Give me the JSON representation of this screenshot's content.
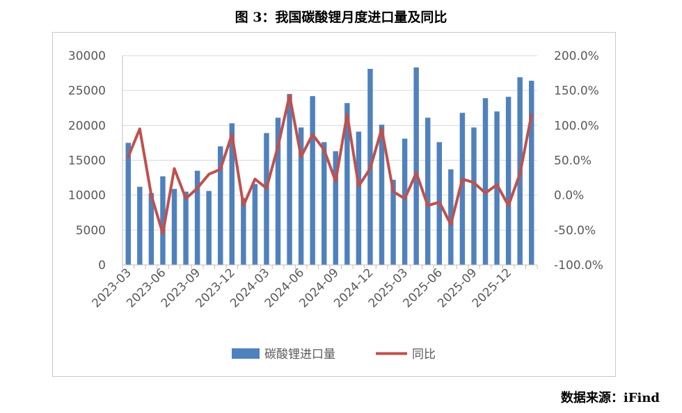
{
  "title": "图 3：我国碳酸锂月度进口量及同比",
  "source": "数据来源：iFind",
  "colors": {
    "bar": "#4f81bd",
    "line": "#c0504d",
    "grid": "#d9d9d9",
    "axis": "#595959"
  },
  "chart_data": {
    "type": "bar+line",
    "title": "",
    "xlabel": "",
    "ylabel": "",
    "categories": [
      "2023-03",
      "2023-04",
      "2023-05",
      "2023-06",
      "2023-07",
      "2023-08",
      "2023-09",
      "2023-10",
      "2023-11",
      "2023-12",
      "2024-01",
      "2024-02",
      "2024-03",
      "2024-04",
      "2024-05",
      "2024-06",
      "2024-07",
      "2024-08",
      "2024-09",
      "2024-10",
      "2024-11",
      "2024-12",
      "2025-01",
      "2025-02",
      "2025-03",
      "2025-04",
      "2025-05",
      "2025-06",
      "2025-07",
      "2025-08",
      "2025-09",
      "2025-10",
      "2025-11",
      "2025-12",
      "2026-01",
      "2026-02"
    ],
    "x_tick_labels": [
      "2023-03",
      "2023-06",
      "2023-09",
      "2023-12",
      "2024-03",
      "2024-06",
      "2024-09",
      "2024-12",
      "2025-03",
      "2025-06",
      "2025-09",
      "2025-12"
    ],
    "series": [
      {
        "name": "碳酸锂进口量",
        "type": "bar",
        "axis": "left",
        "values": [
          17500,
          11200,
          10300,
          12700,
          10900,
          10500,
          13500,
          10600,
          17000,
          20300,
          9600,
          11600,
          18900,
          21100,
          24500,
          19700,
          24200,
          17600,
          16300,
          23200,
          19100,
          28100,
          20100,
          12200,
          18100,
          28300,
          21100,
          17600,
          13700,
          21800,
          19700,
          23900,
          22000,
          24100,
          26900,
          26400
        ]
      },
      {
        "name": "同比",
        "type": "line",
        "axis": "right",
        "values": [
          55,
          95,
          0,
          -55,
          38,
          -5,
          10,
          30,
          37,
          87,
          -15,
          23,
          10,
          70,
          143,
          55,
          87,
          65,
          20,
          116,
          13,
          38,
          95,
          5,
          -5,
          32,
          -15,
          -10,
          -42,
          23,
          18,
          3,
          15,
          -15,
          31,
          115
        ]
      }
    ],
    "left_axis": {
      "range": [
        0,
        30000
      ],
      "ticks": [
        "0",
        "5000",
        "10000",
        "15000",
        "20000",
        "25000",
        "30000"
      ]
    },
    "right_axis": {
      "range": [
        -100,
        200
      ],
      "ticks": [
        "-100.0%",
        "-50.0%",
        "0.0%",
        "50.0%",
        "100.0%",
        "150.0%",
        "200.0%"
      ]
    },
    "grid": true,
    "legend": "bottom"
  }
}
